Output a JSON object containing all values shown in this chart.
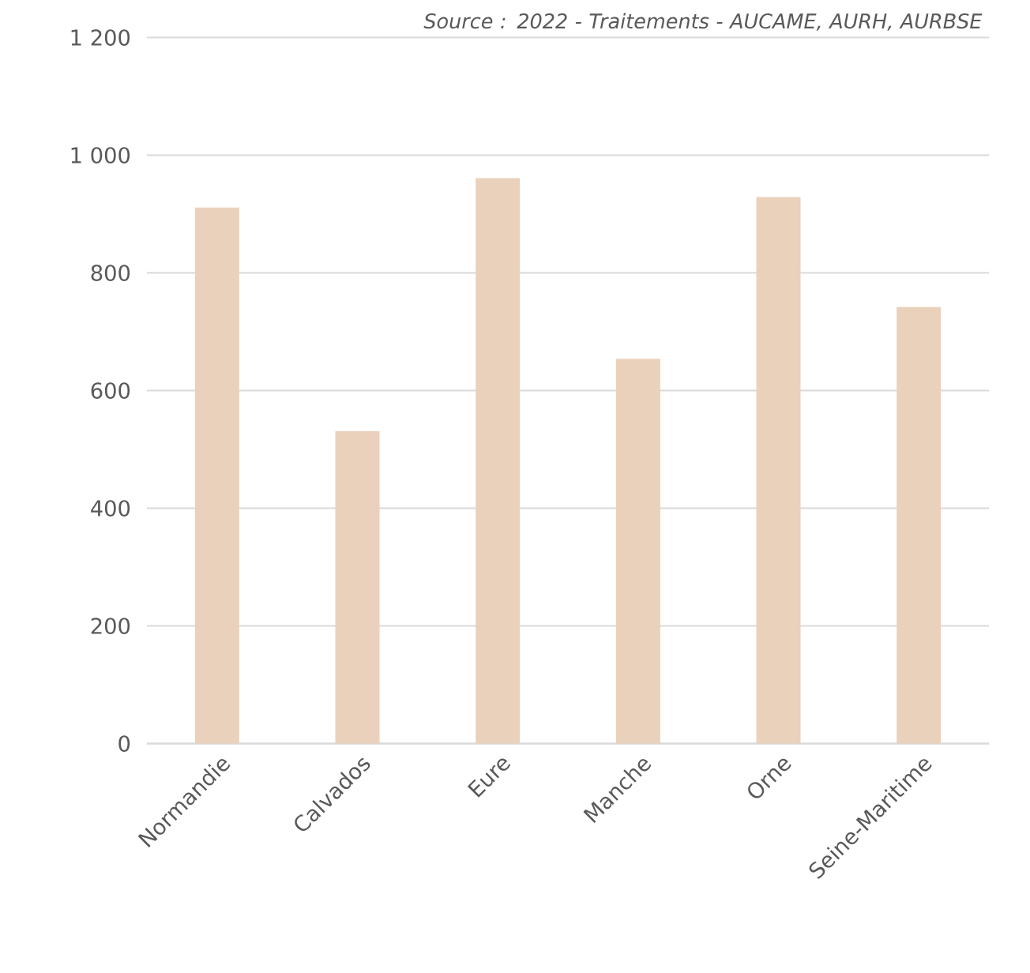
{
  "chart_data": {
    "type": "bar",
    "categories": [
      "Normandie",
      "Calvados",
      "Eure",
      "Manche",
      "Orne",
      "Seine-Maritime"
    ],
    "values": [
      911,
      531,
      961,
      654,
      929,
      742
    ],
    "color": "#ead1bc",
    "ylim": [
      0,
      1200
    ],
    "yticks": [
      {
        "value": 0,
        "label": "0"
      },
      {
        "value": 200,
        "label": "200"
      },
      {
        "value": 400,
        "label": "400"
      },
      {
        "value": 600,
        "label": "600"
      },
      {
        "value": 800,
        "label": "800"
      },
      {
        "value": 1000,
        "label": "1 000"
      },
      {
        "value": 1200,
        "label": "1 200"
      }
    ],
    "grid": "y",
    "annotations": [
      "Source : 2022 - Traitements - AUCAME, AURH, AURBSE"
    ]
  }
}
